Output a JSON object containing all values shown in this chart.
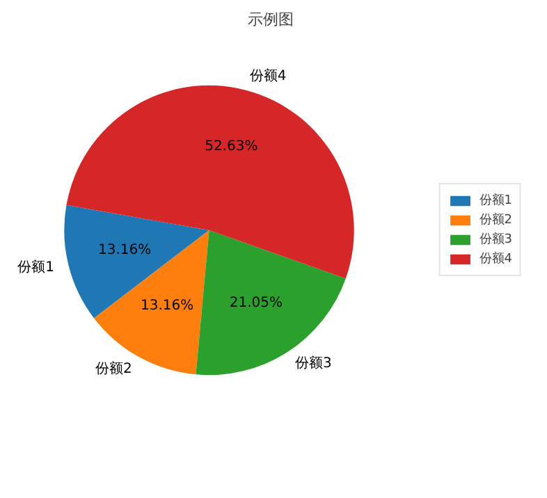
{
  "chart_data": {
    "type": "pie",
    "title": "示例图",
    "categories": [
      "份额1",
      "份额2",
      "份额3",
      "份额4"
    ],
    "values": [
      13.16,
      13.16,
      21.05,
      52.63
    ],
    "colors": [
      "#1f77b4",
      "#ff7f0e",
      "#2ca02c",
      "#d62728"
    ],
    "value_labels": [
      "13.16%",
      "13.16%",
      "21.05%",
      "52.63%"
    ],
    "legend": "right"
  }
}
